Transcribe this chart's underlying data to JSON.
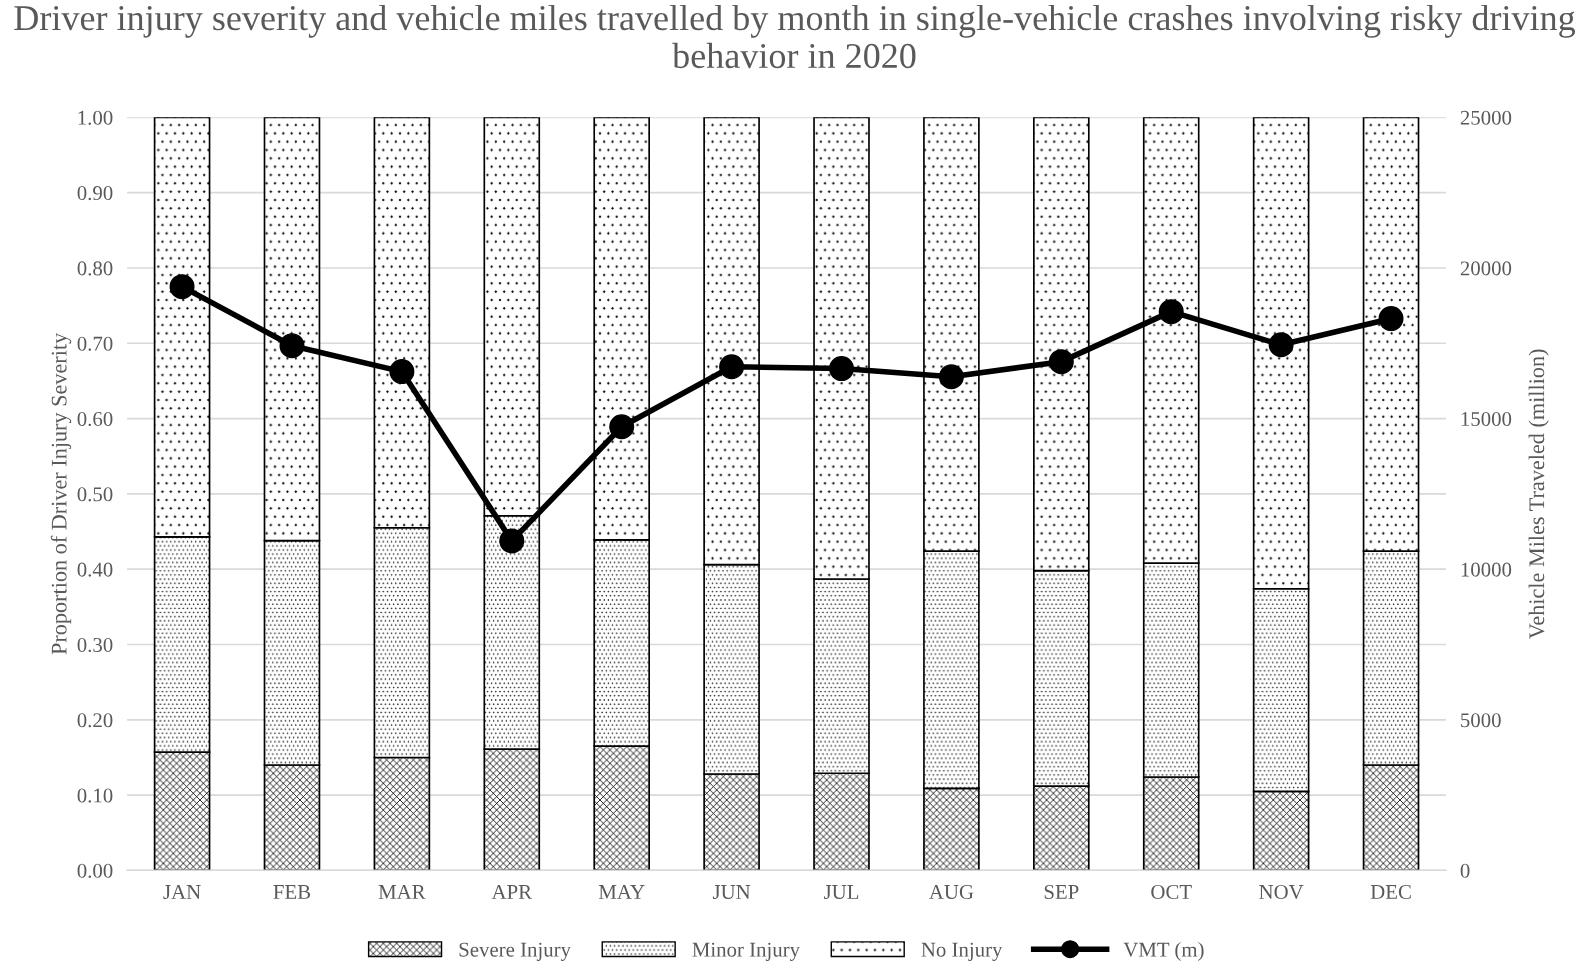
{
  "chart_data": {
    "type": "bar",
    "stacked": true,
    "title": "Driver injury severity and vehicle miles travelled by month in single-vehicle crashes involving risky driving behavior in 2020",
    "ylabel": "Proportion of Driver Injury Severity",
    "y2label": "Vehicle Miles Traveled (million)",
    "categories": [
      "JAN",
      "FEB",
      "MAR",
      "APR",
      "MAY",
      "JUN",
      "JUL",
      "AUG",
      "SEP",
      "OCT",
      "NOV",
      "DEC"
    ],
    "series": [
      {
        "name": "Severe Injury",
        "color": "#000000",
        "values": [
          0.157,
          0.14,
          0.15,
          0.161,
          0.165,
          0.128,
          0.129,
          0.109,
          0.112,
          0.124,
          0.105,
          0.14
        ]
      },
      {
        "name": "Minor Injury",
        "color": "#000000",
        "values": [
          0.286,
          0.298,
          0.305,
          0.31,
          0.274,
          0.278,
          0.258,
          0.315,
          0.286,
          0.284,
          0.269,
          0.284
        ]
      },
      {
        "name": "No Injury",
        "color": "#000000",
        "values": [
          0.557,
          0.562,
          0.545,
          0.529,
          0.561,
          0.594,
          0.613,
          0.576,
          0.602,
          0.592,
          0.626,
          0.576
        ]
      },
      {
        "name": "VMT (m)",
        "type": "line",
        "axis": "y2",
        "color": "#000000",
        "marker": "circle",
        "values": [
          19380,
          17420,
          16560,
          10940,
          14730,
          16720,
          16660,
          16390,
          16890,
          18550,
          17450,
          18320
        ]
      }
    ],
    "ylim": [
      0,
      1.0
    ],
    "yticks": [
      {
        "value": 0,
        "label": "0.00"
      },
      {
        "value": 0.1,
        "label": "0.10"
      },
      {
        "value": 0.2,
        "label": "0.20"
      },
      {
        "value": 0.3,
        "label": "0.30"
      },
      {
        "value": 0.4,
        "label": "0.40"
      },
      {
        "value": 0.5,
        "label": "0.50"
      },
      {
        "value": 0.6,
        "label": "0.60"
      },
      {
        "value": 0.7,
        "label": "0.70"
      },
      {
        "value": 0.8,
        "label": "0.80"
      },
      {
        "value": 0.9,
        "label": "0.90"
      },
      {
        "value": 1.0,
        "label": "1.00"
      }
    ],
    "y2lim": [
      0,
      25000
    ],
    "y2ticks": [
      0,
      5000,
      10000,
      15000,
      20000,
      25000
    ],
    "grid": "y",
    "legend": "bottom"
  }
}
